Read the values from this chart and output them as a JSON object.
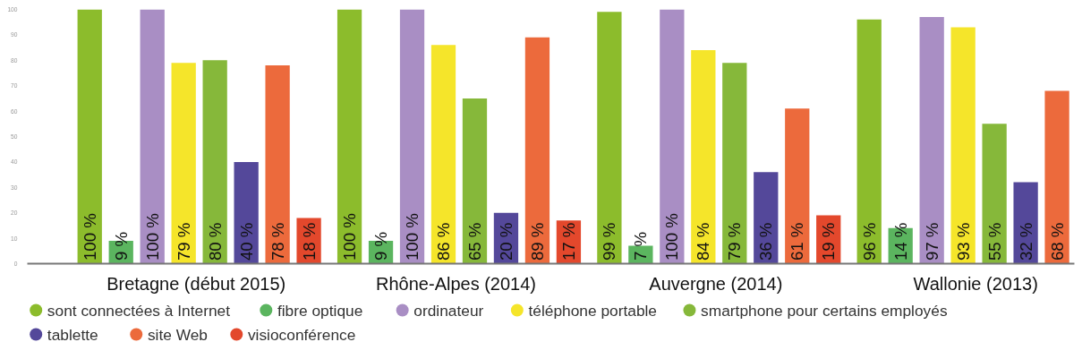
{
  "chart_data": {
    "type": "bar",
    "categories": [
      "Bretagne (début 2015)",
      "Rhône-Alpes (2014)",
      "Auvergne (2014)",
      "Wallonie (2013)"
    ],
    "series": [
      {
        "name": "sont connectées à Internet",
        "color": "#8cbc2c",
        "values": [
          100,
          100,
          99,
          96
        ],
        "value_labels": [
          "100 %",
          "100 %",
          "99 %",
          "96 %"
        ]
      },
      {
        "name": "fibre optique",
        "color": "#5bb55f",
        "values": [
          9,
          9,
          7,
          14
        ],
        "value_labels": [
          "9 %",
          "9 %",
          "7 %",
          "14 %"
        ]
      },
      {
        "name": "ordinateur",
        "color": "#a98ec4",
        "values": [
          100,
          100,
          100,
          97
        ],
        "value_labels": [
          "100 %",
          "100 %",
          "100 %",
          "97 %"
        ]
      },
      {
        "name": "téléphone portable",
        "color": "#f5e52a",
        "values": [
          79,
          86,
          84,
          93
        ],
        "value_labels": [
          "79 %",
          "86 %",
          "84 %",
          "93 %"
        ]
      },
      {
        "name": "smartphone pour certains employés",
        "color": "#86b83a",
        "values": [
          80,
          65,
          79,
          55
        ],
        "value_labels": [
          "80 %",
          "65 %",
          "79 %",
          "55 %"
        ]
      },
      {
        "name": "tablette",
        "color": "#54489a",
        "values": [
          40,
          20,
          36,
          32
        ],
        "value_labels": [
          "40 %",
          "20 %",
          "36 %",
          "32 %"
        ]
      },
      {
        "name": "site Web",
        "color": "#ec6a3c",
        "values": [
          78,
          89,
          61,
          68
        ],
        "value_labels": [
          "78 %",
          "89 %",
          "61 %",
          "68 %"
        ]
      },
      {
        "name": "visioconférence",
        "color": "#e3482c",
        "values": [
          18,
          17,
          19,
          null
        ],
        "value_labels": [
          "18 %",
          "17 %",
          "19 %",
          null
        ]
      }
    ],
    "ylim": [
      0,
      100
    ],
    "yticks": [
      0,
      10,
      20,
      30,
      40,
      50,
      60,
      70,
      80,
      90,
      100
    ],
    "grid": false,
    "legend": "bottom"
  }
}
